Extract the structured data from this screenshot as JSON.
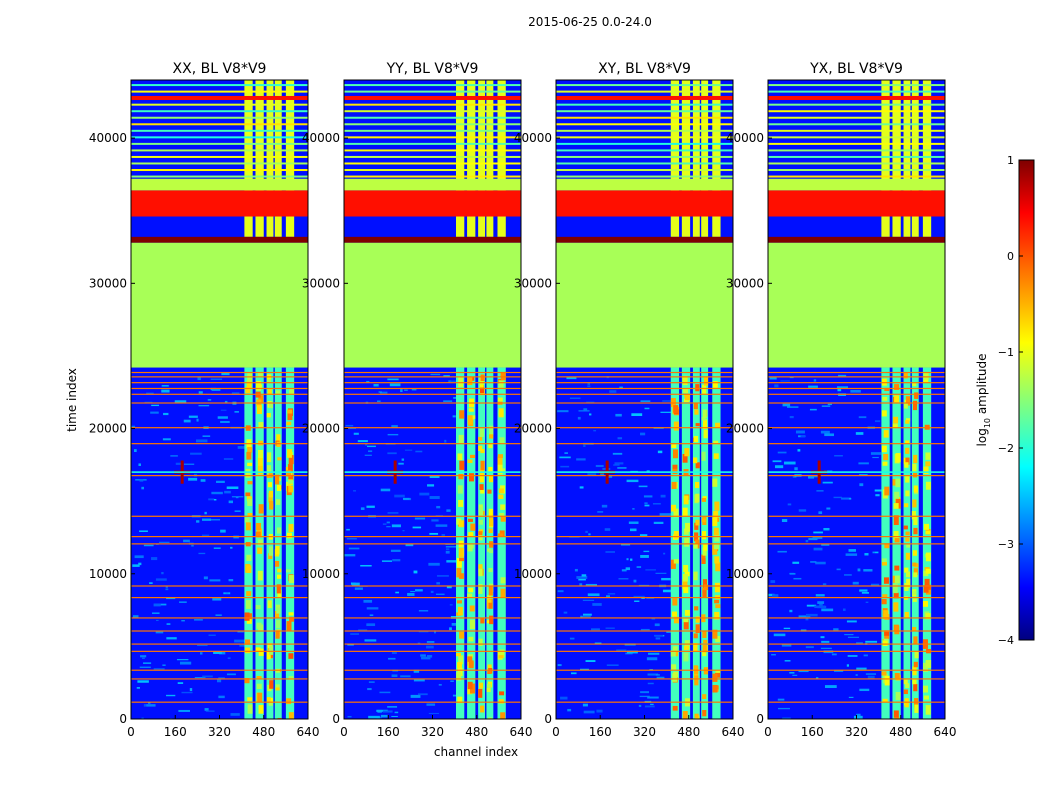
{
  "figure_title": "2015-06-25 0.0-24.0",
  "chart_data": {
    "type": "heatmap",
    "title": "2015-06-25 0.0-24.0",
    "xlabel": "channel index",
    "ylabel": "time index",
    "xlim": [
      0,
      640
    ],
    "ylim": [
      0,
      44000
    ],
    "x_ticks": [
      0,
      160,
      320,
      480,
      640
    ],
    "y_ticks": [
      0,
      10000,
      20000,
      30000,
      40000
    ],
    "colorscale": "jet",
    "colorbar": {
      "label_main": "log",
      "label_sub": "10",
      "label_rest": " amplitude",
      "range": [
        -4,
        1
      ],
      "ticks": [
        1,
        0,
        -1,
        -2,
        -3,
        -4
      ],
      "tick_labels": [
        "1",
        "0",
        "−1",
        "−2",
        "−3",
        "−4"
      ]
    },
    "panels": [
      {
        "title": "XX, BL V8*V9",
        "rfi_start": 410
      },
      {
        "title": "YY, BL V8*V9",
        "rfi_start": 405
      },
      {
        "title": "XY, BL V8*V9",
        "rfi_start": 415
      },
      {
        "title": "YX, BL V8*V9",
        "rfi_start": 410
      }
    ],
    "regions": [
      {
        "name": "flagged-mid",
        "y_from": 24200,
        "y_to": 32800,
        "value": -1.3
      },
      {
        "name": "flagged-high",
        "y_from": 34600,
        "y_to": 36400,
        "value": 0.3
      },
      {
        "name": "band-dark-red",
        "y_from": 32800,
        "y_to": 33200,
        "value": 1.0
      },
      {
        "name": "band-green-upper",
        "y_from": 36400,
        "y_to": 37200,
        "value": -1.2
      }
    ],
    "rfi_channel_ranges": [
      [
        410,
        440
      ],
      [
        450,
        480
      ],
      [
        490,
        515
      ],
      [
        520,
        545
      ],
      [
        560,
        590
      ]
    ],
    "point_source": {
      "channel": 185,
      "time": 17000
    }
  }
}
